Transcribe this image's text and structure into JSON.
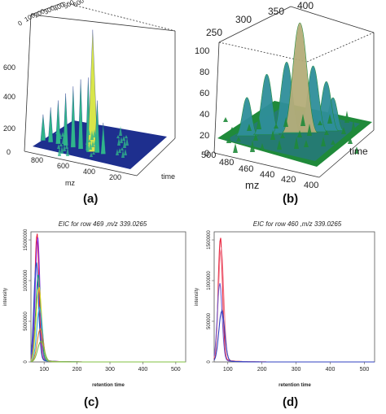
{
  "chart_data": [
    {
      "type": "surface",
      "caption": "(a)",
      "xlabel": "mz",
      "ylabel": "time",
      "x_ticks": [
        "800",
        "600",
        "400",
        "200"
      ],
      "time_ticks": [
        "0",
        "100",
        "200",
        "300",
        "400",
        "500",
        "600"
      ],
      "z_ticks": [
        "0",
        "200",
        "400",
        "600"
      ],
      "z_range": [
        0,
        700
      ],
      "colors": {
        "low": "#1a2a8c",
        "mid": "#2fb58a",
        "high": "#d8e64a"
      },
      "peaks": [
        {
          "mz": 730,
          "height": 150
        },
        {
          "mz": 680,
          "height": 200
        },
        {
          "mz": 630,
          "height": 250
        },
        {
          "mz": 580,
          "height": 300
        },
        {
          "mz": 530,
          "height": 350
        },
        {
          "mz": 480,
          "height": 400
        },
        {
          "mz": 430,
          "height": 420
        },
        {
          "mz": 400,
          "height": 700
        },
        {
          "mz": 370,
          "height": 300
        },
        {
          "mz": 330,
          "height": 180
        }
      ]
    },
    {
      "type": "surface",
      "caption": "(b)",
      "xlabel": "mz",
      "ylabel": "time",
      "x_ticks": [
        "500",
        "480",
        "460",
        "440",
        "420",
        "400"
      ],
      "time_ticks": [
        "250",
        "300",
        "350",
        "400"
      ],
      "z_ticks": [
        "0",
        "20",
        "40",
        "60",
        "80",
        "100"
      ],
      "z_range": [
        0,
        100
      ],
      "colors": {
        "low": "#1f8a3a",
        "mid": "#2f8f9a",
        "high": "#b5ad7a"
      },
      "peaks": [
        {
          "mz": 470,
          "height": 35
        },
        {
          "mz": 455,
          "height": 55
        },
        {
          "mz": 440,
          "height": 65
        },
        {
          "mz": 430,
          "height": 100
        },
        {
          "mz": 420,
          "height": 60
        },
        {
          "mz": 410,
          "height": 45
        },
        {
          "mz": 405,
          "height": 30
        }
      ]
    },
    {
      "type": "line",
      "caption": "(c)",
      "title": "EIC for row 469 ,m/z 339.0265",
      "xlabel": "retention time",
      "ylabel": "intensity",
      "x_ticks": [
        "100",
        "200",
        "300",
        "400",
        "500"
      ],
      "y_ticks": [
        "0",
        "5000000",
        "10000000",
        "15000000"
      ],
      "xlim": [
        60,
        530
      ],
      "ylim": [
        0,
        16000000
      ],
      "series": [
        {
          "color": "#e8203a",
          "peak_x": 78,
          "peak_y": 15500000,
          "width": 9
        },
        {
          "color": "#8a2be2",
          "peak_x": 80,
          "peak_y": 15000000,
          "width": 10
        },
        {
          "color": "#2050c8",
          "peak_x": 76,
          "peak_y": 12000000,
          "width": 10
        },
        {
          "color": "#20a070",
          "peak_x": 82,
          "peak_y": 10500000,
          "width": 11
        },
        {
          "color": "#e0d020",
          "peak_x": 84,
          "peak_y": 9000000,
          "width": 12
        },
        {
          "color": "#30b0e0",
          "peak_x": 86,
          "peak_y": 6500000,
          "width": 12
        },
        {
          "color": "#e08030",
          "peak_x": 88,
          "peak_y": 4000000,
          "width": 13
        },
        {
          "color": "#80c040",
          "peak_x": 90,
          "peak_y": 2500000,
          "width": 14
        }
      ]
    },
    {
      "type": "line",
      "caption": "(d)",
      "title": "EIC for row 460 ,m/z 339.0265",
      "xlabel": "retention time",
      "ylabel": "intensity",
      "x_ticks": [
        "100",
        "200",
        "300",
        "400",
        "500"
      ],
      "y_ticks": [
        "0",
        "500000",
        "1000000",
        "1500000"
      ],
      "xlim": [
        60,
        530
      ],
      "ylim": [
        0,
        1600000
      ],
      "series": [
        {
          "color": "#e8203a",
          "peak_x": 78,
          "peak_y": 1500000,
          "width": 9
        },
        {
          "color": "#f08090",
          "peak_x": 80,
          "peak_y": 1380000,
          "width": 11
        },
        {
          "color": "#7060d0",
          "peak_x": 76,
          "peak_y": 950000,
          "width": 10
        },
        {
          "color": "#3040c0",
          "peak_x": 82,
          "peak_y": 620000,
          "width": 12
        }
      ]
    }
  ]
}
